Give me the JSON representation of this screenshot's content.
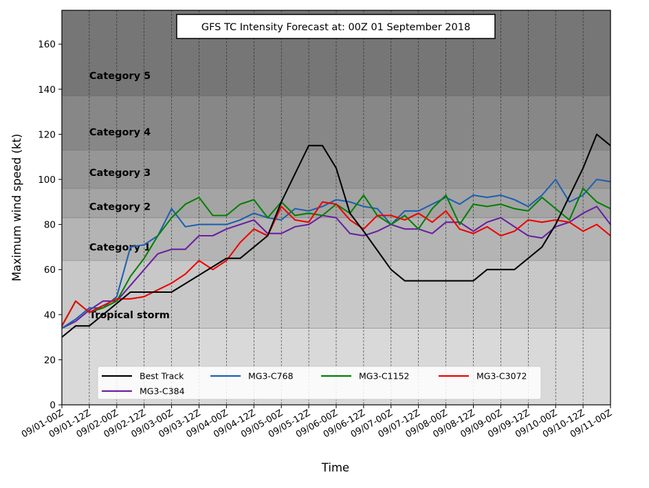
{
  "chart_data": {
    "type": "line",
    "title": "GFS TC Intensity Forecast at: 00Z 01 September 2018",
    "xlabel": "Time",
    "ylabel": "Maximum wind speed (kt)",
    "ylim": [
      0,
      175
    ],
    "xlim": [
      0,
      80
    ],
    "x_unit": "6-hour steps from 00Z 01 September 2018",
    "grid": "vertical dashed at each tick",
    "legend_position": "lower-center",
    "y_ticks": [
      0,
      20,
      40,
      60,
      80,
      100,
      120,
      140,
      160
    ],
    "x_ticks": [
      {
        "x": 0,
        "label": "09/01-00Z"
      },
      {
        "x": 4,
        "label": "09/01-12Z"
      },
      {
        "x": 8,
        "label": "09/02-00Z"
      },
      {
        "x": 12,
        "label": "09/02-12Z"
      },
      {
        "x": 16,
        "label": "09/03-00Z"
      },
      {
        "x": 20,
        "label": "09/03-12Z"
      },
      {
        "x": 24,
        "label": "09/04-00Z"
      },
      {
        "x": 28,
        "label": "09/04-12Z"
      },
      {
        "x": 32,
        "label": "09/05-00Z"
      },
      {
        "x": 36,
        "label": "09/05-12Z"
      },
      {
        "x": 40,
        "label": "09/06-00Z"
      },
      {
        "x": 44,
        "label": "09/06-12Z"
      },
      {
        "x": 48,
        "label": "09/07-00Z"
      },
      {
        "x": 52,
        "label": "09/07-12Z"
      },
      {
        "x": 56,
        "label": "09/08-00Z"
      },
      {
        "x": 60,
        "label": "09/08-12Z"
      },
      {
        "x": 64,
        "label": "09/09-00Z"
      },
      {
        "x": 68,
        "label": "09/09-12Z"
      },
      {
        "x": 72,
        "label": "09/10-00Z"
      },
      {
        "x": 76,
        "label": "09/10-12Z"
      },
      {
        "x": 80,
        "label": "09/11-00Z"
      }
    ],
    "bands": [
      {
        "label": "Tropical storm",
        "from": 34,
        "to": 64,
        "color": "#c8c8c8"
      },
      {
        "label": "Category 1",
        "from": 64,
        "to": 83,
        "color": "#b4b4b4"
      },
      {
        "label": "Category 2",
        "from": 83,
        "to": 96,
        "color": "#a4a4a4"
      },
      {
        "label": "Category 3",
        "from": 96,
        "to": 113,
        "color": "#969696"
      },
      {
        "label": "Category 4",
        "from": 113,
        "to": 137,
        "color": "#878787"
      },
      {
        "label": "Category 5",
        "from": 137,
        "to": 175,
        "color": "#767676"
      }
    ],
    "below_band_color": "#d9d9d9",
    "series": [
      {
        "name": "Best Track",
        "color": "#000000",
        "x": [
          0,
          2,
          4,
          8,
          10,
          14,
          16,
          20,
          24,
          26,
          30,
          32,
          36,
          38,
          40,
          42,
          44,
          48,
          50,
          60,
          62,
          66,
          70,
          72,
          76,
          78,
          80
        ],
        "values": [
          30,
          35,
          35,
          45,
          50,
          50,
          50,
          57.5,
          65,
          65,
          75,
          90,
          115,
          115,
          105,
          85,
          77,
          60,
          55,
          55,
          60,
          60,
          70,
          80,
          105,
          120,
          115
        ]
      },
      {
        "name": "MG3-C768",
        "color": "#1f5fb0",
        "x": [
          0,
          2,
          4,
          6,
          8,
          10,
          12,
          14,
          16,
          18,
          20,
          22,
          24,
          26,
          28,
          30,
          32,
          34,
          36,
          38,
          40,
          42,
          44,
          46,
          48,
          50,
          52,
          54,
          56,
          58,
          60,
          62,
          64,
          66,
          68,
          70,
          72,
          74,
          76,
          78,
          80
        ],
        "values": [
          34,
          38,
          43,
          43,
          48,
          70,
          71,
          75,
          87,
          79,
          80,
          80,
          80,
          82,
          85,
          83,
          82,
          87,
          86,
          88,
          91,
          90,
          88,
          87,
          80,
          86,
          86,
          89,
          92,
          89,
          93,
          92,
          93,
          91,
          88,
          93,
          100,
          90,
          93,
          100,
          99
        ]
      },
      {
        "name": "MG3-C1152",
        "color": "#008000",
        "x": [
          0,
          2,
          4,
          6,
          8,
          10,
          12,
          14,
          16,
          18,
          20,
          22,
          24,
          26,
          28,
          30,
          32,
          34,
          36,
          38,
          40,
          42,
          44,
          46,
          48,
          50,
          52,
          54,
          56,
          58,
          60,
          62,
          64,
          66,
          68,
          70,
          72,
          74,
          76,
          78,
          80
        ],
        "values": [
          35,
          46,
          41,
          43,
          46,
          57,
          65,
          75,
          83,
          89,
          92,
          84,
          84,
          89,
          91,
          83,
          90,
          84,
          85,
          84,
          89,
          85,
          93,
          84,
          80,
          84,
          78,
          87,
          93,
          80,
          89,
          88,
          89,
          87,
          86,
          92,
          87,
          82,
          96,
          90,
          87
        ]
      },
      {
        "name": "MG3-C3072",
        "color": "#ee0000",
        "x": [
          0,
          2,
          4,
          6,
          8,
          10,
          12,
          14,
          16,
          18,
          20,
          22,
          24,
          26,
          28,
          30,
          32,
          34,
          36,
          38,
          40,
          42,
          44,
          46,
          48,
          50,
          52,
          54,
          56,
          58,
          60,
          62,
          64,
          66,
          68,
          70,
          72,
          74,
          76,
          78,
          80
        ],
        "values": [
          35,
          46,
          41,
          44,
          47,
          47,
          48,
          51,
          54,
          58,
          64,
          60,
          64,
          72,
          78,
          75,
          88,
          82,
          81,
          90,
          89,
          82,
          78,
          84,
          84,
          82,
          85,
          81,
          86,
          78,
          76,
          79,
          75,
          77,
          82,
          81,
          82,
          81,
          77,
          80,
          75
        ]
      },
      {
        "name": "MG3-C384",
        "color": "#6a1fa0",
        "x": [
          0,
          2,
          4,
          6,
          8,
          10,
          12,
          14,
          16,
          18,
          20,
          22,
          24,
          26,
          28,
          30,
          32,
          34,
          36,
          38,
          40,
          42,
          44,
          46,
          48,
          50,
          52,
          54,
          56,
          58,
          60,
          62,
          64,
          66,
          68,
          70,
          72,
          74,
          76,
          78,
          80
        ],
        "values": [
          34,
          37,
          42,
          46,
          46,
          53,
          60,
          67,
          69,
          69,
          75,
          75,
          78,
          80,
          82,
          76,
          76,
          79,
          80,
          84,
          83,
          76,
          75,
          77,
          80,
          78,
          78,
          76,
          81,
          81,
          77,
          81,
          83,
          79,
          75,
          74,
          79,
          81,
          85,
          88,
          80
        ]
      }
    ],
    "legend_order": [
      "Best Track",
      "MG3-C768",
      "MG3-C1152",
      "MG3-C3072",
      "MG3-C384"
    ]
  }
}
